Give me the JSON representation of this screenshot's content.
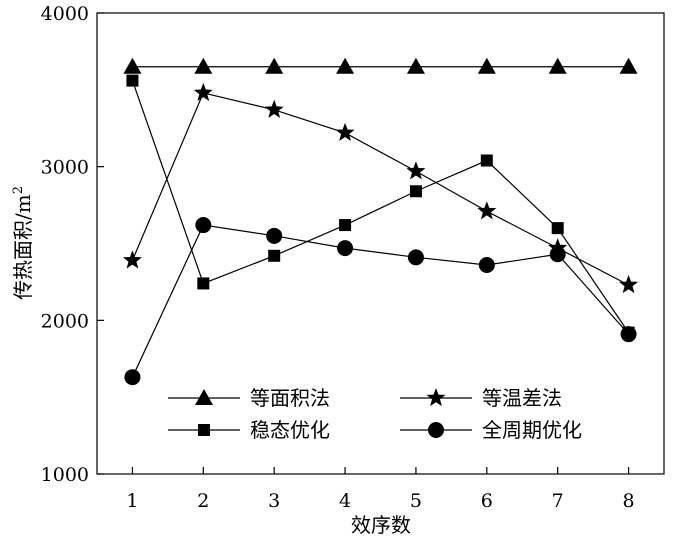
{
  "chart_data": {
    "type": "line",
    "title": "",
    "xlabel": "效序数",
    "ylabel_main": "传热面积/m",
    "ylabel_sup": "2",
    "x": [
      1,
      2,
      3,
      4,
      5,
      6,
      7,
      8
    ],
    "xlim": [
      0.5,
      8.5
    ],
    "ylim": [
      1000,
      4000
    ],
    "yticks": [
      1000,
      2000,
      3000,
      4000
    ],
    "grid": false,
    "legend_position": "bottom-center",
    "series": [
      {
        "name": "等面积法",
        "marker": "triangle",
        "values": [
          3650,
          3650,
          3650,
          3650,
          3650,
          3650,
          3650,
          3650
        ]
      },
      {
        "name": "等温差法",
        "marker": "star",
        "values": [
          2390,
          3480,
          3370,
          3220,
          2970,
          2710,
          2470,
          2230
        ]
      },
      {
        "name": "稳态优化",
        "marker": "square",
        "values": [
          3560,
          2240,
          2420,
          2620,
          2840,
          3040,
          2600,
          1920
        ]
      },
      {
        "name": "全周期优化",
        "marker": "circle",
        "values": [
          1630,
          2620,
          2550,
          2470,
          2410,
          2360,
          2430,
          1910
        ]
      }
    ]
  }
}
